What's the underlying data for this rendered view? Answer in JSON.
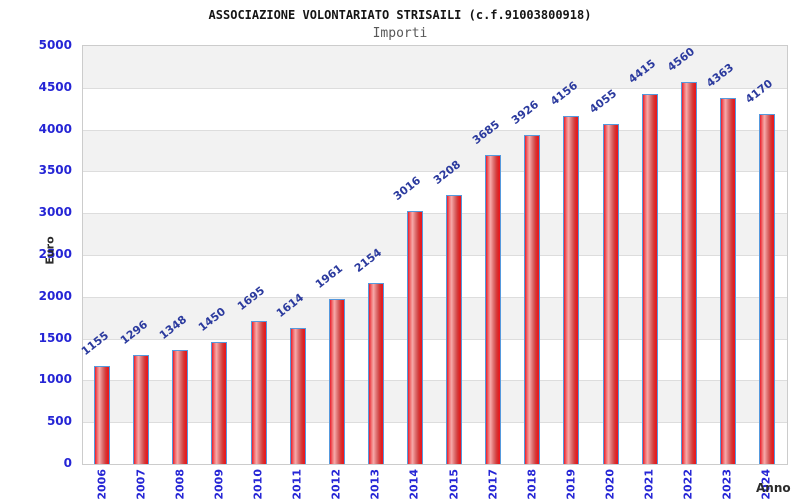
{
  "header": {
    "title": "ASSOCIAZIONE VOLONTARIATO STRISAILI (c.f.91003800918)",
    "subtitle": "Importi"
  },
  "chart_data": {
    "type": "bar",
    "title": "ASSOCIAZIONE VOLONTARIATO STRISAILI (c.f.91003800918)",
    "subtitle": "Importi",
    "xlabel": "Anno",
    "ylabel": "Euro",
    "categories": [
      "2006",
      "2007",
      "2008",
      "2009",
      "2010",
      "2011",
      "2012",
      "2013",
      "2014",
      "2015",
      "2017",
      "2018",
      "2019",
      "2020",
      "2021",
      "2022",
      "2023",
      "2024"
    ],
    "values": [
      1155,
      1296,
      1348,
      1450,
      1695,
      1614,
      1961,
      2154,
      3016,
      3208,
      3685,
      3926,
      4156,
      4055,
      4415,
      4560,
      4363,
      4170
    ],
    "ylim": [
      0,
      5000
    ],
    "ytick_step": 500,
    "yticks": [
      0,
      500,
      1000,
      1500,
      2000,
      2500,
      3000,
      3500,
      4000,
      4500,
      5000
    ],
    "grid": "horizontal gridlines with alternating gray/white bands",
    "legend": "none",
    "colors": {
      "bar_fill": "#ea1c2c",
      "bar_highlight": "#f6abab",
      "bar_border": "#5599dd",
      "tick_label": "#2525d5",
      "value_label": "#2b3a9e",
      "band_gray": "#f2f2f2",
      "grid_line": "#dddddd",
      "title_color": "#151515",
      "subtitle_color": "#585858"
    }
  }
}
